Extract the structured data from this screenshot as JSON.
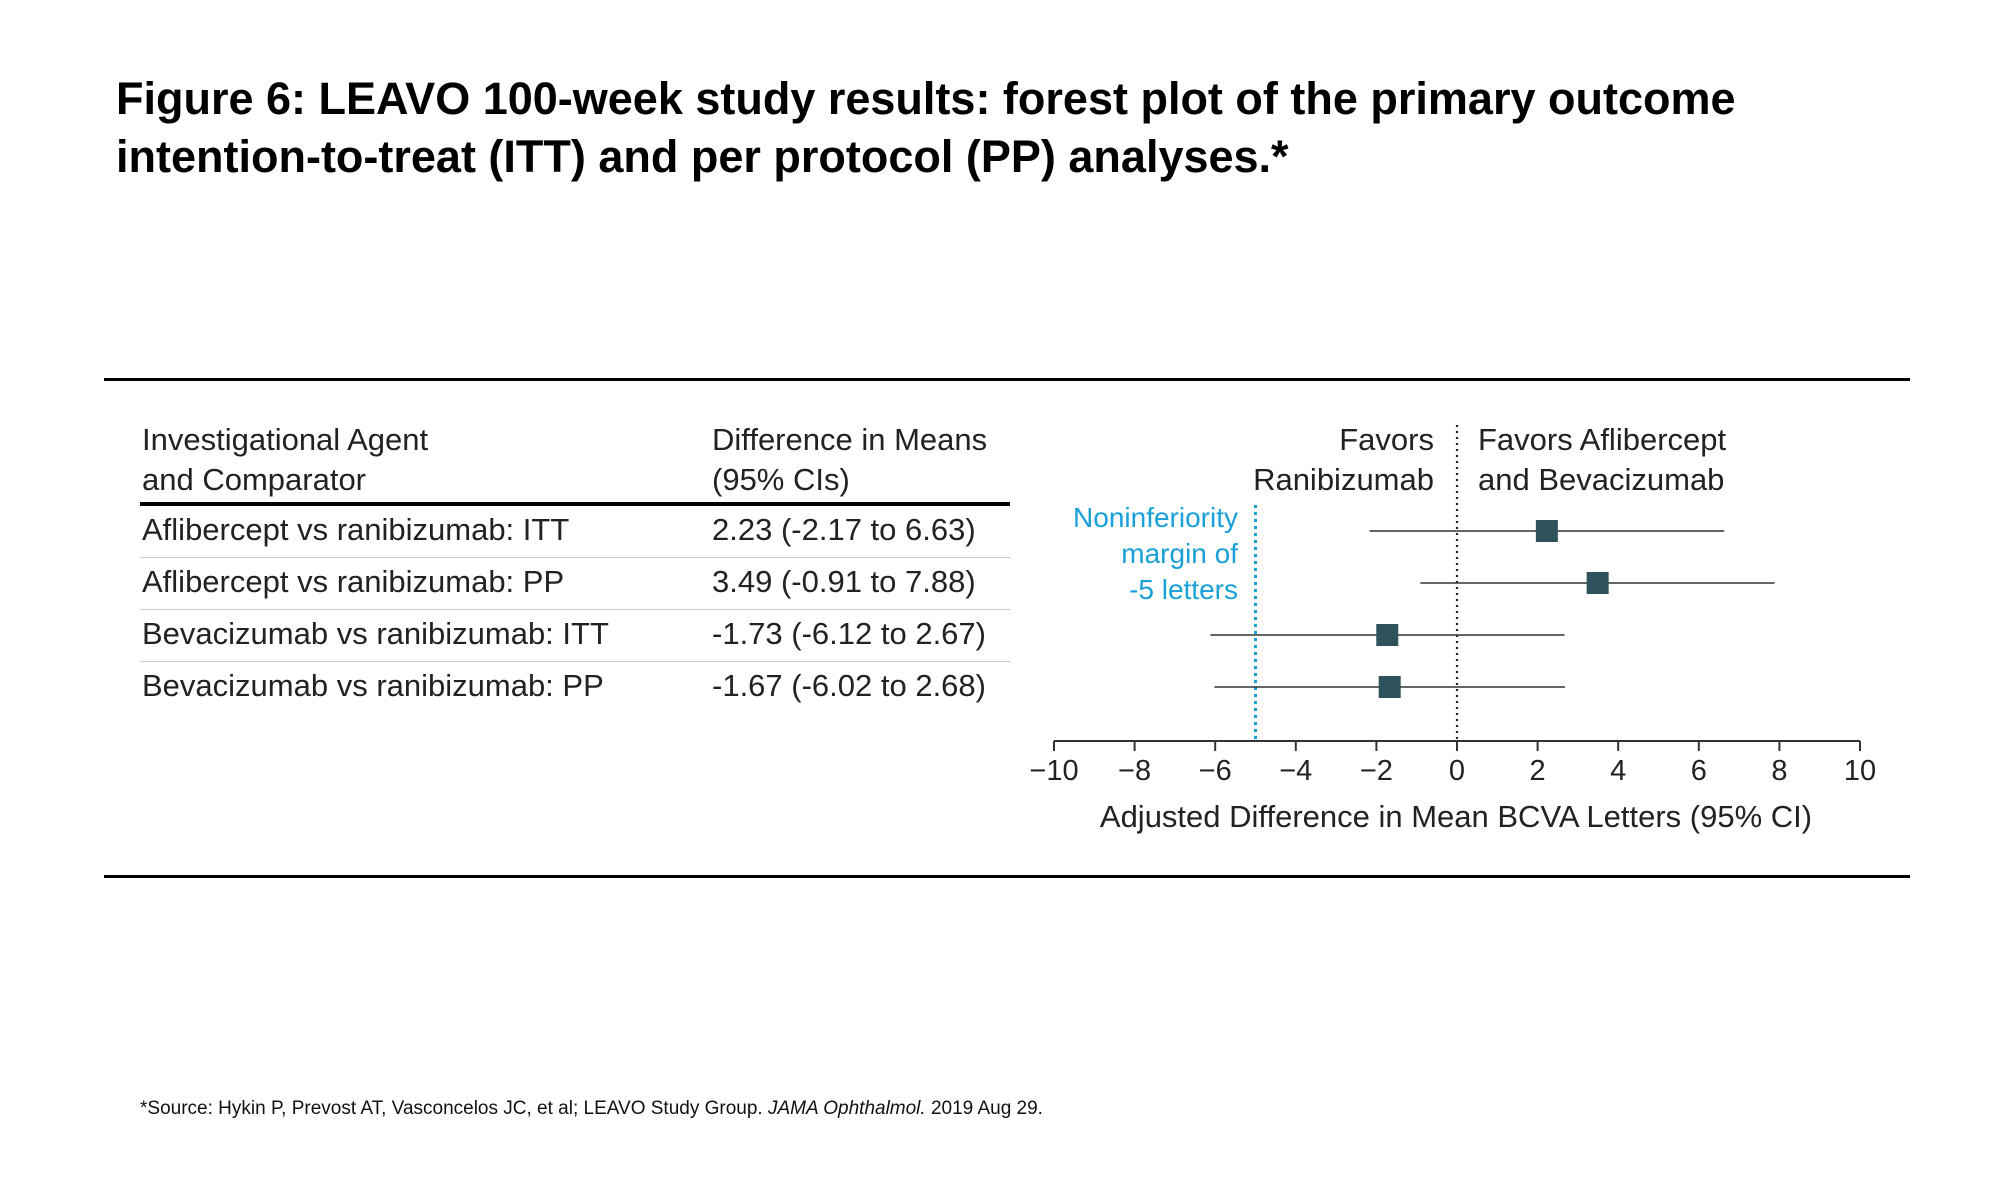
{
  "title": "Figure 6: LEAVO 100-week study results: forest plot of the primary outcome intention-to-treat (ITT) and per protocol (PP) analyses.*",
  "table": {
    "col1_header": [
      "Investigational Agent",
      "and Comparator"
    ],
    "col2_header": [
      "Difference in Means",
      "(95% CIs)"
    ],
    "rows": [
      {
        "comparison": "Aflibercept vs ranibizumab: ITT",
        "difference": "2.23 (-2.17 to 6.63)"
      },
      {
        "comparison": "Aflibercept vs ranibizumab: PP",
        "difference": "3.49 (-0.91 to 7.88)"
      },
      {
        "comparison": "Bevacizumab vs ranibizumab: ITT",
        "difference": "-1.73 (-6.12 to 2.67)"
      },
      {
        "comparison": "Bevacizumab vs ranibizumab: PP",
        "difference": "-1.67 (-6.02 to 2.68)"
      }
    ]
  },
  "favors_left": [
    "Favors",
    "Ranibizumab"
  ],
  "favors_right": [
    "Favors Aflibercept",
    "and Bevacizumab"
  ],
  "noninferiority_label": [
    "Noninferiority",
    "margin of",
    "-5 letters"
  ],
  "footnote": {
    "prefix": "*Source: Hykin P, Prevost AT, Vasconcelos JC, et al; LEAVO Study Group. ",
    "journal": "JAMA Ophthalmol.",
    "suffix": " 2019 Aug 29."
  },
  "colors": {
    "marker": "#2f535d",
    "margin_line": "#1aa0d8",
    "ci_line": "#333333"
  },
  "chart_data": {
    "type": "forest",
    "xlabel": "Adjusted Difference in Mean BCVA Letters (95% CI)",
    "xlim": [
      -10,
      10
    ],
    "xticks": [
      -10,
      -8,
      -6,
      -4,
      -2,
      0,
      2,
      4,
      6,
      8,
      10
    ],
    "reference_line": 0,
    "noninferiority_margin": -5,
    "series": [
      {
        "name": "Aflibercept vs ranibizumab: ITT",
        "estimate": 2.23,
        "lower": -2.17,
        "upper": 6.63
      },
      {
        "name": "Aflibercept vs ranibizumab: PP",
        "estimate": 3.49,
        "lower": -0.91,
        "upper": 7.88
      },
      {
        "name": "Bevacizumab vs ranibizumab: ITT",
        "estimate": -1.73,
        "lower": -6.12,
        "upper": 2.67
      },
      {
        "name": "Bevacizumab vs ranibizumab: PP",
        "estimate": -1.67,
        "lower": -6.02,
        "upper": 2.68
      }
    ]
  }
}
